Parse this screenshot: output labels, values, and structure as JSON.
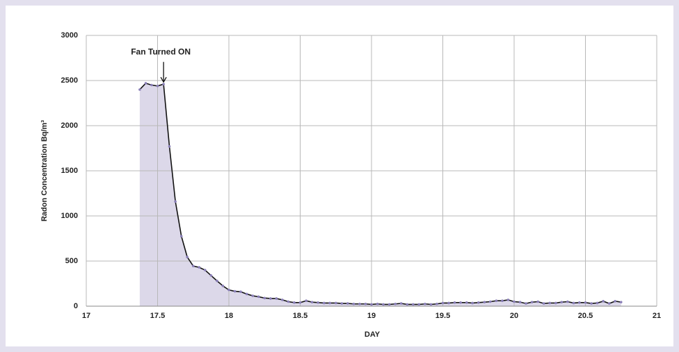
{
  "chart_data": {
    "type": "area",
    "annotation": "Fan Turned ON",
    "x_label": "DAY",
    "y_label": "Radon Concentration  Bq/m³",
    "x": [
      17.375,
      17.417,
      17.458,
      17.5,
      17.542,
      17.583,
      17.625,
      17.667,
      17.708,
      17.75,
      17.792,
      17.833,
      17.875,
      17.917,
      17.958,
      18.0,
      18.042,
      18.083,
      18.125,
      18.167,
      18.208,
      18.25,
      18.292,
      18.333,
      18.375,
      18.417,
      18.458,
      18.5,
      18.542,
      18.583,
      18.625,
      18.667,
      18.708,
      18.75,
      18.792,
      18.833,
      18.875,
      18.917,
      18.958,
      19.0,
      19.042,
      19.083,
      19.125,
      19.167,
      19.208,
      19.25,
      19.292,
      19.333,
      19.375,
      19.417,
      19.458,
      19.5,
      19.542,
      19.583,
      19.625,
      19.667,
      19.708,
      19.75,
      19.792,
      19.833,
      19.875,
      19.917,
      19.958,
      20.0,
      20.042,
      20.083,
      20.125,
      20.167,
      20.208,
      20.25,
      20.292,
      20.333,
      20.375,
      20.417,
      20.458,
      20.5,
      20.542,
      20.583,
      20.625,
      20.667,
      20.708,
      20.75
    ],
    "values": [
      2400,
      2470,
      2450,
      2440,
      2460,
      1770,
      1160,
      775,
      545,
      445,
      430,
      400,
      340,
      280,
      225,
      180,
      165,
      160,
      135,
      115,
      105,
      90,
      85,
      85,
      70,
      50,
      40,
      40,
      60,
      45,
      40,
      35,
      35,
      35,
      30,
      30,
      25,
      25,
      25,
      20,
      25,
      20,
      20,
      25,
      30,
      20,
      20,
      20,
      25,
      20,
      25,
      35,
      35,
      40,
      40,
      40,
      35,
      40,
      45,
      50,
      60,
      60,
      70,
      50,
      45,
      30,
      45,
      50,
      30,
      35,
      35,
      45,
      50,
      35,
      40,
      40,
      30,
      35,
      55,
      30,
      55,
      45
    ],
    "line_color": "#111111",
    "fill_color": "#dcd8e9",
    "marker_color": "#8a7fb8",
    "xlim": [
      17,
      21
    ],
    "xticks": [
      17,
      17.5,
      18,
      18.5,
      19,
      19.5,
      20,
      20.5,
      21
    ],
    "ylim": [
      0,
      3000
    ],
    "yticks": [
      0,
      500,
      1000,
      1500,
      2000,
      2500,
      3000
    ],
    "grid": true
  }
}
